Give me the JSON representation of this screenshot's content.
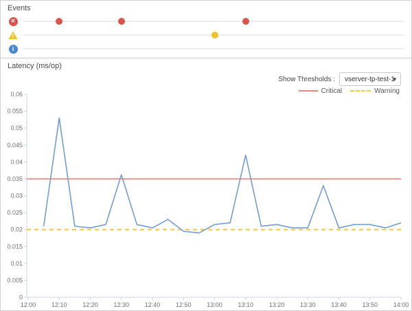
{
  "events_panel": {
    "title": "Events",
    "rows": [
      {
        "name": "error",
        "icon": "error-icon",
        "color": "#d9534f",
        "glyph": "✕",
        "dot_times": [
          "12:10",
          "12:30",
          "13:10"
        ]
      },
      {
        "name": "warning",
        "icon": "warning-icon",
        "color": "#eec32a",
        "glyph": "!",
        "dot_times": [
          "13:00"
        ]
      },
      {
        "name": "info",
        "icon": "info-icon",
        "color": "#4a87d3",
        "glyph": "i",
        "dot_times": []
      }
    ]
  },
  "latency_panel": {
    "title": "Latency (ms/op)",
    "show_thresholds_label": "Show Thresholds :",
    "thresholds_selected": "vserver-tp-test-1",
    "caret": "▾",
    "legend": {
      "critical_label": "Critical",
      "warning_label": "Warning"
    }
  },
  "colors": {
    "series_blue": "#739cd2",
    "critical_red": "#f08380",
    "warning_gold": "#f3c73f",
    "axis_line": "#c9d4e2",
    "axis_text": "#6f6f6f"
  },
  "chart_data": {
    "type": "line",
    "title": "Latency (ms/op)",
    "xlabel": "",
    "ylabel": "",
    "ylim": [
      0,
      0.06
    ],
    "ytick_step": 0.005,
    "yticks": [
      0,
      0.005,
      0.01,
      0.015,
      0.02,
      0.025,
      0.03,
      0.035,
      0.04,
      0.045,
      0.05,
      0.055,
      0.06
    ],
    "xticks": [
      "12:00",
      "12:10",
      "12:20",
      "12:30",
      "12:40",
      "12:50",
      "13:00",
      "13:10",
      "13:20",
      "13:30",
      "13:40",
      "13:50",
      "14:00"
    ],
    "grid": false,
    "legend_position": "top-right",
    "thresholds": {
      "critical": 0.035,
      "warning": 0.02
    },
    "series": [
      {
        "name": "Latency",
        "points": [
          [
            "12:05",
            0.021
          ],
          [
            "12:10",
            0.053
          ],
          [
            "12:15",
            0.021
          ],
          [
            "12:20",
            0.0205
          ],
          [
            "12:25",
            0.0215
          ],
          [
            "12:30",
            0.0362
          ],
          [
            "12:35",
            0.0215
          ],
          [
            "12:40",
            0.0205
          ],
          [
            "12:45",
            0.023
          ],
          [
            "12:50",
            0.0195
          ],
          [
            "12:55",
            0.019
          ],
          [
            "13:00",
            0.0215
          ],
          [
            "13:05",
            0.022
          ],
          [
            "13:10",
            0.042
          ],
          [
            "13:15",
            0.021
          ],
          [
            "13:20",
            0.0215
          ],
          [
            "13:25",
            0.0205
          ],
          [
            "13:30",
            0.0205
          ],
          [
            "13:35",
            0.033
          ],
          [
            "13:40",
            0.0205
          ],
          [
            "13:45",
            0.0215
          ],
          [
            "13:50",
            0.0215
          ],
          [
            "13:55",
            0.0205
          ],
          [
            "14:00",
            0.022
          ]
        ]
      }
    ]
  }
}
